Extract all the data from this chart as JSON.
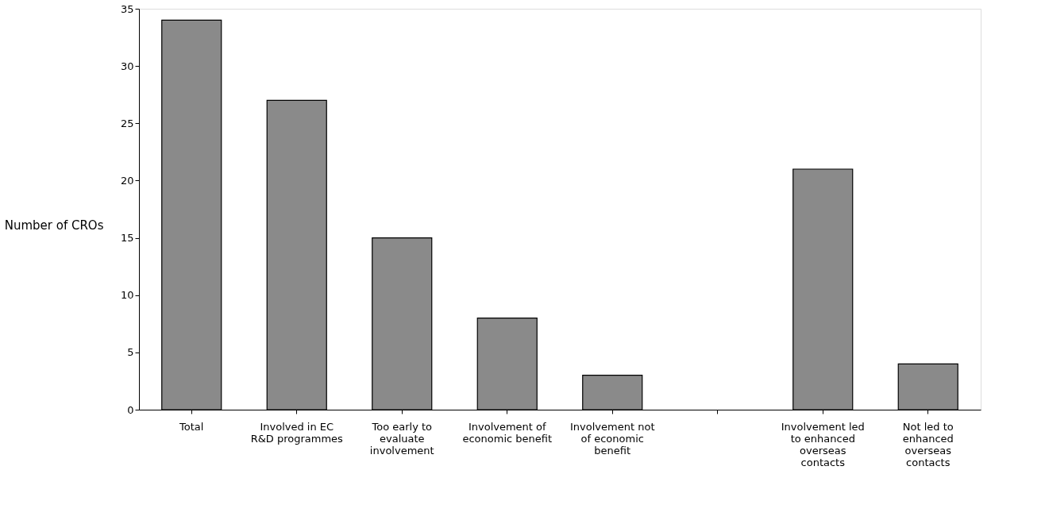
{
  "chart_data": {
    "type": "bar",
    "ylabel": "Number of CROs",
    "categories": [
      "Total",
      "Involved in EC R&D programmes",
      "Too early to evaluate involvement",
      "Involvement of economic benefit",
      "Involvement not of economic benefit",
      null,
      "Involvement led to enhanced overseas contacts",
      "Not led to enhanced overseas contacts"
    ],
    "values": [
      34,
      27,
      15,
      8,
      3,
      null,
      21,
      4
    ],
    "color": "#8a8a8a",
    "ylim": [
      0,
      35
    ],
    "yticks": [
      0,
      5,
      10,
      15,
      20,
      25,
      30,
      35
    ],
    "grid": false
  }
}
